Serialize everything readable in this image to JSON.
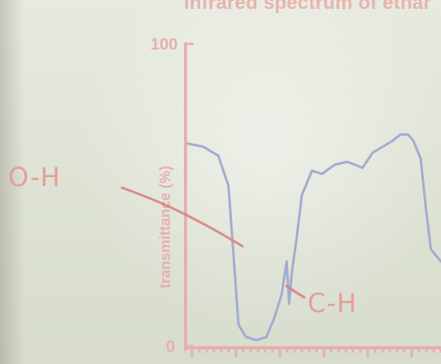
{
  "title": "Infrared spectrum of ethar",
  "chart_data": {
    "type": "line",
    "title": "Infrared spectrum of ethar",
    "xlabel": "",
    "ylabel": "transmittance (%)",
    "ylim": [
      0,
      100
    ],
    "y_ticks": [
      "0",
      "100"
    ],
    "grid": false,
    "series": [
      {
        "points": [
          [
            0.0,
            67
          ],
          [
            0.06,
            66
          ],
          [
            0.12,
            63
          ],
          [
            0.16,
            53
          ],
          [
            0.18,
            30
          ],
          [
            0.2,
            7
          ],
          [
            0.23,
            3
          ],
          [
            0.27,
            2
          ],
          [
            0.31,
            3
          ],
          [
            0.34,
            9
          ],
          [
            0.37,
            17
          ],
          [
            0.39,
            28
          ],
          [
            0.4,
            14
          ],
          [
            0.41,
            24
          ],
          [
            0.43,
            36
          ],
          [
            0.45,
            50
          ],
          [
            0.49,
            58
          ],
          [
            0.53,
            57
          ],
          [
            0.58,
            60
          ],
          [
            0.63,
            61
          ],
          [
            0.69,
            59
          ],
          [
            0.73,
            64
          ],
          [
            0.77,
            66
          ],
          [
            0.81,
            68
          ],
          [
            0.84,
            70
          ],
          [
            0.87,
            70
          ],
          [
            0.89,
            68
          ],
          [
            0.92,
            62
          ],
          [
            0.94,
            46
          ],
          [
            0.96,
            32
          ],
          [
            1.0,
            28
          ]
        ]
      }
    ]
  },
  "annotations": {
    "oh": "O-H",
    "ch": "C-H"
  }
}
